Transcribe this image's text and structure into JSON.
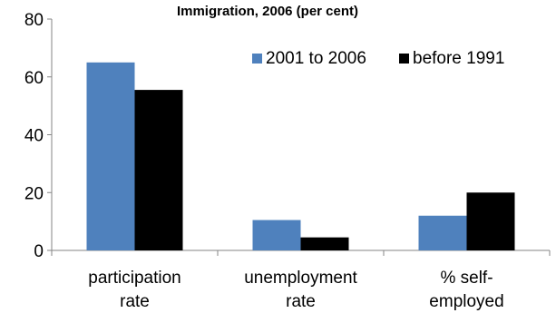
{
  "chart_data": {
    "type": "bar",
    "title": "Immigration, 2006 (per cent)",
    "categories": [
      [
        "participation",
        "rate"
      ],
      [
        "unemployment",
        "rate"
      ],
      [
        "% self-",
        "employed"
      ]
    ],
    "series": [
      {
        "name": "2001 to 2006",
        "values": [
          65,
          10.5,
          12
        ],
        "color": "#4F81BD"
      },
      {
        "name": "before 1991",
        "values": [
          55.5,
          4.5,
          20
        ],
        "color": "#000000"
      }
    ],
    "ylim": [
      0,
      80
    ],
    "yticks": [
      "0",
      "20",
      "40",
      "60",
      "80"
    ],
    "xlabel": "",
    "ylabel": "",
    "grid": false,
    "legend_position": "top-right"
  }
}
